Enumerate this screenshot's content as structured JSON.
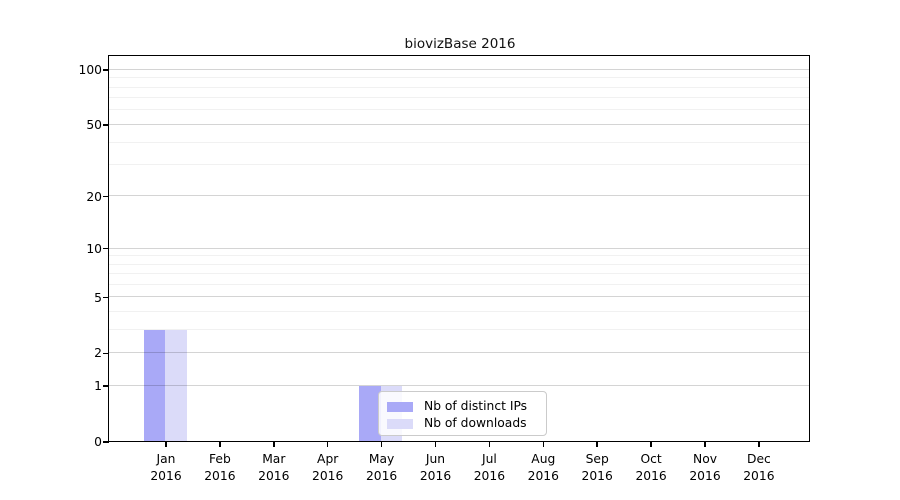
{
  "chart_data": {
    "type": "bar",
    "title": "biovizBase 2016",
    "categories": [
      "Jan",
      "Feb",
      "Mar",
      "Apr",
      "May",
      "Jun",
      "Jul",
      "Aug",
      "Sep",
      "Oct",
      "Nov",
      "Dec"
    ],
    "year_label": "2016",
    "series": [
      {
        "name": "Nb of distinct IPs",
        "color": "#a9a9f7",
        "values": [
          3,
          0,
          0,
          0,
          1,
          0,
          0,
          0,
          0,
          0,
          0,
          0
        ]
      },
      {
        "name": "Nb of downloads",
        "color": "#dbdbf9",
        "values": [
          3,
          0,
          0,
          0,
          1,
          0,
          0,
          0,
          0,
          0,
          0,
          0
        ]
      }
    ],
    "xlabel": "",
    "ylabel": "",
    "yscale": "log1p",
    "ylim": [
      0,
      117.6
    ],
    "yticks": [
      0,
      1,
      2,
      5,
      10,
      20,
      50,
      100
    ],
    "minor_gridlines": [
      3,
      4,
      6,
      7,
      8,
      9,
      30,
      40,
      60,
      70,
      80,
      90
    ],
    "grid": true,
    "legend_position": "inside-bottom-center",
    "axis_color": "#000000",
    "background_color": "#ffffff"
  }
}
